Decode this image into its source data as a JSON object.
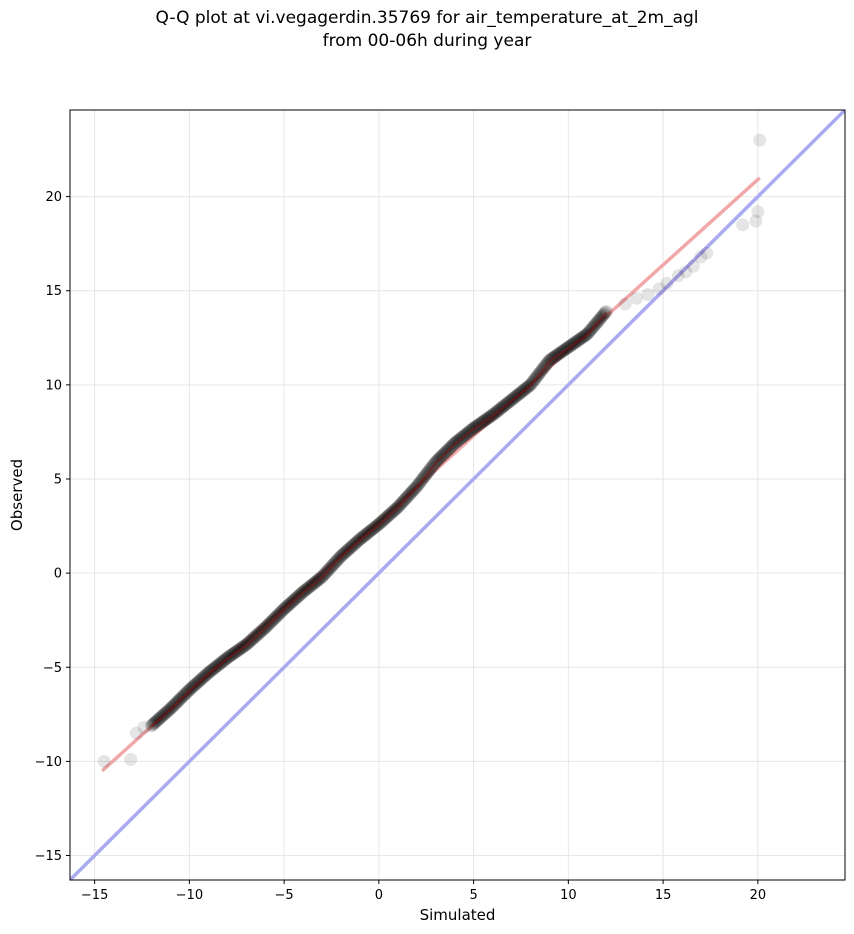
{
  "chart_data": {
    "type": "scatter",
    "title_line1": "Q-Q plot at vi.vegagerdin.35769 for air_temperature_at_2m_agl",
    "title_line2": "from 00-06h during year",
    "xlabel": "Simulated",
    "ylabel": "Observed",
    "xlim": [
      -16.3,
      24.6
    ],
    "ylim": [
      -16.3,
      24.6
    ],
    "xticks": [
      -15,
      -10,
      -5,
      0,
      5,
      10,
      15,
      20
    ],
    "yticks": [
      -15,
      -10,
      -5,
      0,
      5,
      10,
      15,
      20
    ],
    "tick_labels": [
      "−15",
      "−10",
      "−5",
      "0",
      "5",
      "10",
      "15",
      "20"
    ],
    "grid": true,
    "reference_line": {
      "color": "#aaaaf0",
      "x": [
        -16.3,
        24.6
      ],
      "y": [
        -16.3,
        24.6
      ]
    },
    "fit_line": {
      "color": "#f0a8a8",
      "x": [
        -14.6,
        20.1
      ],
      "y": [
        -10.5,
        21.0
      ]
    },
    "quantile_curve": {
      "x": [
        -12.0,
        -11.0,
        -10.0,
        -9.0,
        -8.0,
        -7.0,
        -6.0,
        -5.0,
        -4.0,
        -3.0,
        -2.0,
        -1.0,
        0.0,
        1.0,
        2.0,
        3.0,
        4.0,
        5.0,
        6.0,
        7.0,
        8.0,
        9.0,
        10.0,
        11.0,
        12.0
      ],
      "y": [
        -8.1,
        -7.2,
        -6.2,
        -5.3,
        -4.5,
        -3.8,
        -2.9,
        -1.9,
        -1.0,
        -0.2,
        0.9,
        1.8,
        2.6,
        3.5,
        4.6,
        5.9,
        6.9,
        7.7,
        8.4,
        9.2,
        10.0,
        11.3,
        12.0,
        12.7,
        13.9
      ]
    },
    "outlier_points": {
      "x": [
        -14.5,
        -13.1,
        -12.8,
        -12.4,
        13.0,
        13.6,
        14.2,
        14.8,
        15.2,
        15.8,
        16.2,
        16.6,
        17.0,
        17.3,
        19.2,
        19.9,
        20.0,
        20.1
      ],
      "y": [
        -10.0,
        -9.9,
        -8.5,
        -8.2,
        14.3,
        14.6,
        14.8,
        15.1,
        15.4,
        15.8,
        16.0,
        16.3,
        16.8,
        17.0,
        18.5,
        18.7,
        19.2,
        23.0
      ]
    }
  }
}
